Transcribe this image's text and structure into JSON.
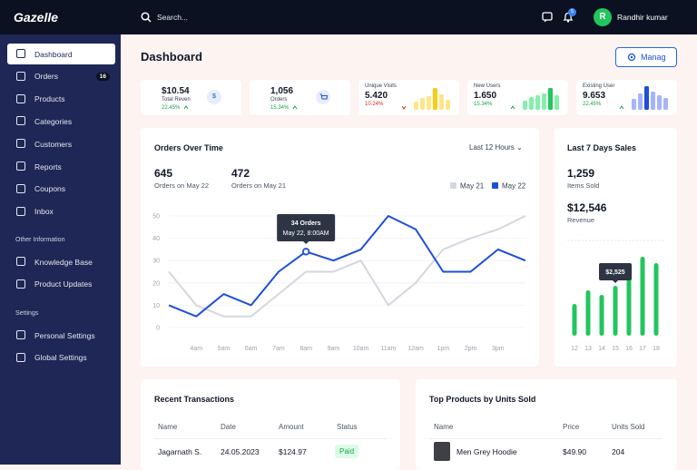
{
  "header": {
    "logo": "Gazelle",
    "search": "Search...",
    "notifications": 5,
    "user_initial": "R",
    "user_name": "Randhir kumar"
  },
  "sidebar": {
    "main": [
      {
        "label": "Dashboard"
      },
      {
        "label": "Orders",
        "badge": 16
      },
      {
        "label": "Products"
      },
      {
        "label": "Categories"
      },
      {
        "label": "Customers"
      },
      {
        "label": "Reports"
      },
      {
        "label": "Coupons"
      },
      {
        "label": "Inbox"
      }
    ],
    "other_title": "Other Information",
    "other": [
      {
        "label": "Knowledge Base"
      },
      {
        "label": "Product Updates"
      }
    ],
    "settings_title": "Settings",
    "settings": [
      {
        "label": "Personal Settings"
      },
      {
        "label": "Global Settings"
      }
    ]
  },
  "page": {
    "title": "Dashboard",
    "button": "Manag"
  },
  "stats": [
    {
      "value": "$10.54",
      "label": "Total Reven",
      "change": "22.45%",
      "trend": "up",
      "icon": "$"
    },
    {
      "value": "1,056",
      "label": "Orders",
      "change": "15.34%",
      "trend": "up"
    },
    {
      "value": "5.420",
      "label": "Unique Visits",
      "change": "10.24%",
      "trend": "down",
      "bars": [
        9,
        13,
        15,
        24,
        17,
        11
      ],
      "color": "#fde68a",
      "highlight_color": "#facc15",
      "highlight": 3
    },
    {
      "value": "1.650",
      "label": "New Users",
      "change": "15.34%",
      "trend": "up",
      "bars": [
        10,
        14,
        16,
        18,
        24,
        16
      ],
      "color": "#86efac",
      "highlight_color": "#22c55e",
      "highlight": 4
    },
    {
      "value": "9.653",
      "label": "Existing User",
      "change": "22.45%",
      "trend": "up",
      "bars": [
        12,
        18,
        26,
        20,
        16,
        13
      ],
      "color": "#a5b4fc",
      "highlight_color": "#1d4ed8",
      "highlight": 2
    }
  ],
  "orders_chart": {
    "type": "line",
    "title": "Orders Over Time",
    "range": "Last 12 Hours",
    "summary": [
      {
        "value": 645,
        "label": "Orders on May 22"
      },
      {
        "value": 472,
        "label": "Orders on May 21"
      }
    ],
    "categories": [
      null,
      "4am",
      "5am",
      "6am",
      "7am",
      "8am",
      "9am",
      "10am",
      "11am",
      "12am",
      "1pm",
      "2pm",
      "3pm",
      null
    ],
    "series": [
      {
        "name": "May 21",
        "color": "#d4d7de",
        "values": [
          25,
          10,
          5,
          5,
          15,
          25,
          25,
          30,
          10,
          20,
          35,
          40,
          44,
          50
        ]
      },
      {
        "name": "May 22",
        "color": "#1d4ed8",
        "values": [
          10,
          5,
          15,
          10,
          25,
          34,
          30,
          35,
          50,
          44,
          25,
          25,
          35,
          30
        ]
      }
    ],
    "ylim": [
      0,
      50
    ],
    "yticks": [
      0,
      10,
      20,
      30,
      40,
      50
    ],
    "grid": true,
    "tooltip": {
      "title": "34 Orders",
      "subtitle": "May 22, 8:00AM"
    }
  },
  "sales_chart": {
    "type": "bar",
    "title": "Last 7 Days Sales",
    "items": {
      "value": "1,259",
      "label": "Items Sold"
    },
    "revenue": {
      "value": "$12,546",
      "label": "Revenue"
    },
    "categories": [
      12,
      13,
      14,
      15,
      16,
      17,
      18
    ],
    "values": [
      35,
      50,
      45,
      55,
      65,
      87,
      80
    ],
    "color": "#22c55e",
    "tooltip": "$2,525"
  },
  "transactions": {
    "title": "Recent Transactions",
    "columns": [
      "Name",
      "Date",
      "Amount",
      "Status"
    ],
    "rows": [
      [
        "Jagarnath S.",
        "24.05.2023",
        "$124.97",
        "Paid"
      ]
    ]
  },
  "products": {
    "title": "Top Products by Units Sold",
    "columns": [
      "Name",
      "Price",
      "Units Sold"
    ],
    "rows": [
      [
        "Men Grey Hoodie",
        "$49.90",
        204
      ]
    ]
  }
}
